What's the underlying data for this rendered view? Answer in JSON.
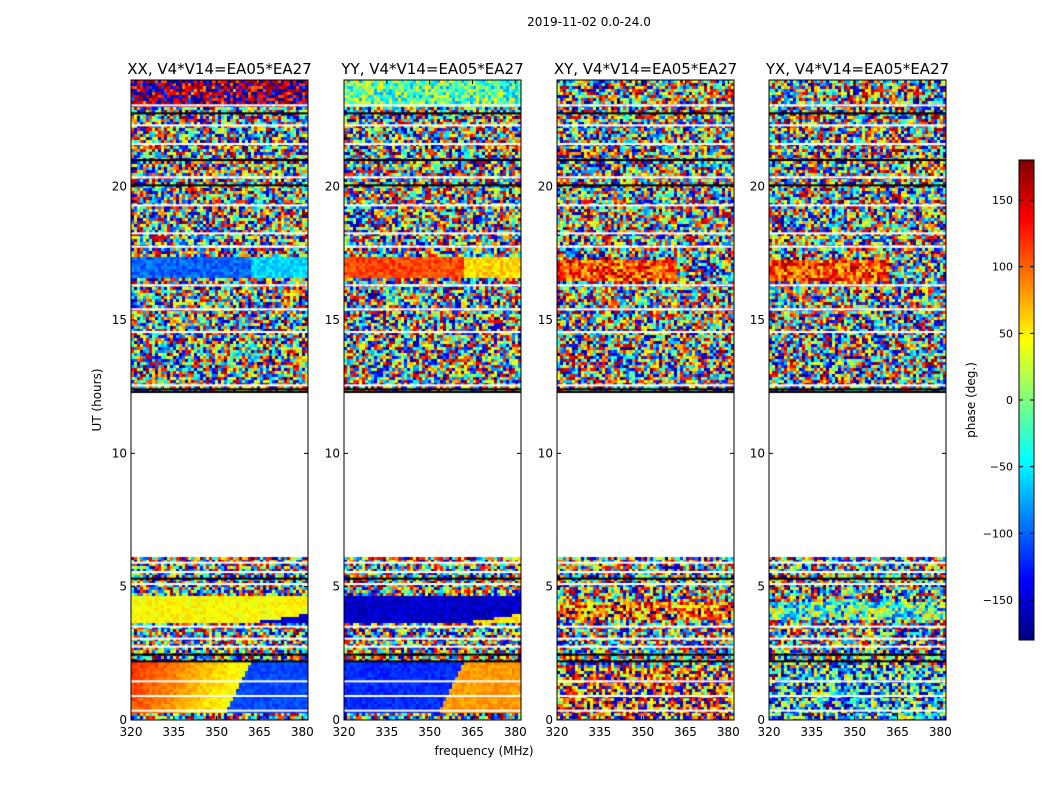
{
  "figure": {
    "suptitle": "2019-11-02 0.0-24.0"
  },
  "chart_data": {
    "type": "heatmap",
    "title": "2019-11-02 0.0-24.0",
    "xlabel": "frequency (MHz)",
    "ylabel": "UT (hours)",
    "xlim": [
      320,
      382
    ],
    "ylim": [
      0,
      24
    ],
    "xticks": [
      "320",
      "335",
      "350",
      "365",
      "380"
    ],
    "xtick_values": [
      320,
      335,
      350,
      365,
      380
    ],
    "yticks": [
      "0",
      "5",
      "10",
      "15",
      "20"
    ],
    "ytick_values": [
      0,
      5,
      10,
      15,
      20
    ],
    "panels": [
      {
        "title": "XX, V4*V14=EA05*EA27",
        "kind": "XX"
      },
      {
        "title": "YY, V4*V14=EA05*EA27",
        "kind": "YY"
      },
      {
        "title": "XY, V4*V14=EA05*EA27",
        "kind": "XY"
      },
      {
        "title": "YX, V4*V14=EA05*EA27",
        "kind": "YX"
      }
    ],
    "data_gaps_ut": [
      [
        6.1,
        12.3
      ]
    ],
    "colorbar": {
      "label": "phase (deg.)",
      "range": [
        -180,
        180
      ],
      "ticks": [
        "150",
        "100",
        "50",
        "0",
        "−50",
        "−100",
        "−150"
      ],
      "tick_values": [
        150,
        100,
        50,
        0,
        -50,
        -100,
        -150
      ],
      "colormap": "jet"
    }
  },
  "colors": {
    "jet_stops": [
      "#00007f",
      "#0000ff",
      "#007fff",
      "#00ffff",
      "#7fff7f",
      "#ffff00",
      "#ff7f00",
      "#ff0000",
      "#7f0000"
    ]
  }
}
